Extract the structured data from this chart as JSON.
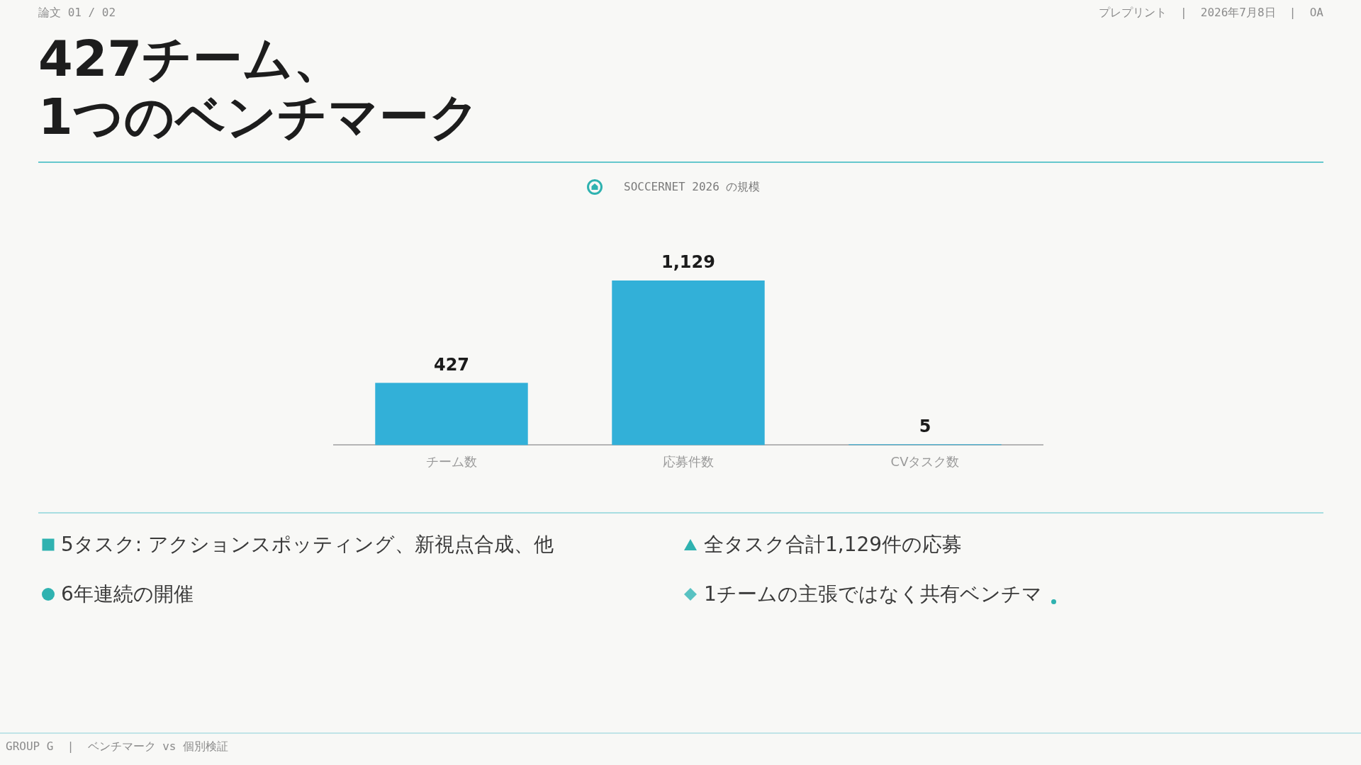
{
  "chart_data": {
    "type": "bar",
    "title": "427チーム、\n1つのベンチマーク",
    "subtitle": "SOCCERNET 2026 の規模",
    "categories": [
      "チーム数",
      "応募件数",
      "CVタスク数"
    ],
    "values": [
      427,
      1129,
      5
    ],
    "value_labels": [
      "427",
      "1,129",
      "5"
    ],
    "color": "#32b0d8",
    "grid": false,
    "legend": false,
    "annotations": [
      "論文 01 / 02",
      "プレプリント  |  2026年7月8日  |  OA",
      "5タスク: アクションスポッティング、新視点合成、他",
      "全タスク合計1,129件の応募",
      "6年連続の開催",
      "1チームの主張ではなく共有ベンチマ",
      "GROUP G  |  ベンチマーク vs 個別検証"
    ]
  }
}
